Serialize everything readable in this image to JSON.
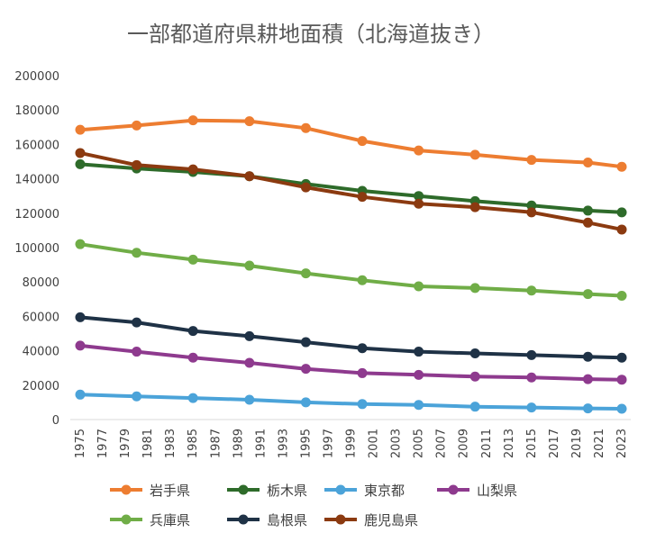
{
  "chart_data": {
    "type": "line",
    "title": "一部都道府県耕地面積（北海道抜き）",
    "xlabel": "",
    "ylabel": "",
    "x": [
      1975,
      1980,
      1985,
      1990,
      1995,
      2000,
      2005,
      2010,
      2015,
      2020,
      2023
    ],
    "x_ticks": [
      1975,
      1977,
      1979,
      1981,
      1983,
      1985,
      1987,
      1989,
      1991,
      1993,
      1995,
      1997,
      1999,
      2001,
      2003,
      2005,
      2007,
      2009,
      2011,
      2013,
      2015,
      2017,
      2019,
      2021,
      2023
    ],
    "y_ticks": [
      0,
      20000,
      40000,
      60000,
      80000,
      100000,
      120000,
      140000,
      160000,
      180000,
      200000
    ],
    "ylim": [
      0,
      200000
    ],
    "grid": false,
    "legend_position": "bottom",
    "series": [
      {
        "name": "岩手県",
        "color": "#ED7D31",
        "values": [
          168500,
          171000,
          174000,
          173500,
          169500,
          162000,
          156500,
          154000,
          151000,
          149500,
          147000
        ]
      },
      {
        "name": "栃木県",
        "color": "#2E6B2A",
        "values": [
          148500,
          146000,
          144000,
          141500,
          137000,
          133000,
          130000,
          127000,
          124500,
          121500,
          120500
        ]
      },
      {
        "name": "東京都",
        "color": "#4BA3D9",
        "values": [
          14500,
          13500,
          12500,
          11500,
          10000,
          9000,
          8500,
          7500,
          7000,
          6500,
          6300
        ]
      },
      {
        "name": "山梨県",
        "color": "#8E3A8E",
        "values": [
          43000,
          39500,
          36000,
          33000,
          29500,
          27000,
          26000,
          25000,
          24500,
          23500,
          23200
        ]
      },
      {
        "name": "兵庫県",
        "color": "#70AD47",
        "values": [
          102000,
          97000,
          93000,
          89500,
          85000,
          81000,
          77500,
          76500,
          75000,
          73000,
          72000
        ]
      },
      {
        "name": "島根県",
        "color": "#1F3246",
        "values": [
          59500,
          56500,
          51500,
          48500,
          45000,
          41500,
          39500,
          38500,
          37500,
          36500,
          36000
        ]
      },
      {
        "name": "鹿児島県",
        "color": "#8B3A10",
        "values": [
          155000,
          148000,
          145500,
          141500,
          135000,
          129500,
          125500,
          123500,
          120500,
          114500,
          110500
        ]
      }
    ]
  }
}
